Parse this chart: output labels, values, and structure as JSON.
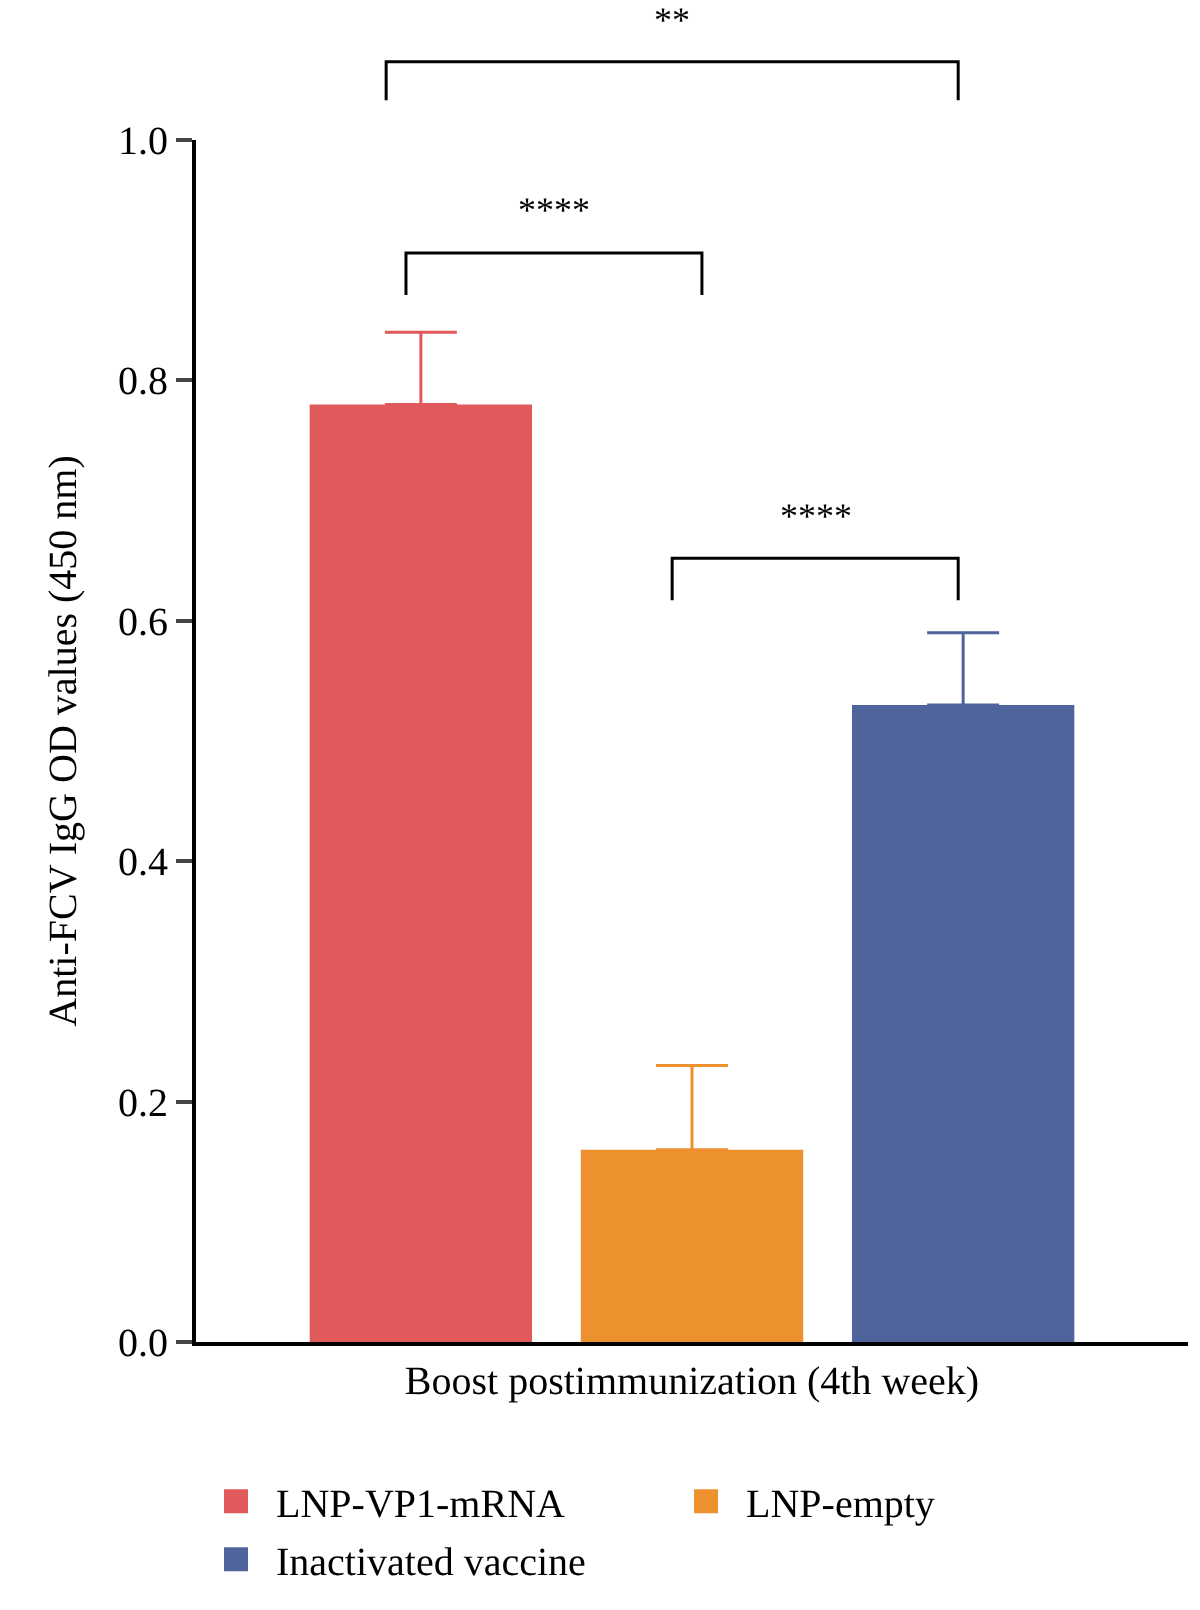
{
  "chart_data": {
    "type": "bar",
    "ylabel": "Anti-FCV IgG OD values (450 nm)",
    "categories": [
      "Boost postimmunization (4th week)"
    ],
    "series": [
      {
        "name": "LNP-VP1-mRNA",
        "color": "#e05a5c",
        "values": [
          0.78
        ],
        "errors": [
          [
            0.78,
            0.84
          ]
        ]
      },
      {
        "name": "LNP-empty",
        "color": "#ed912e",
        "values": [
          0.16
        ],
        "errors": [
          [
            0.16,
            0.23
          ]
        ]
      },
      {
        "name": "Inactivated vaccine",
        "color": "#4f649c",
        "values": [
          0.53
        ],
        "errors": [
          [
            0.53,
            0.59
          ]
        ]
      }
    ],
    "ylim": [
      0,
      1
    ],
    "yticks": [
      {
        "value": 0,
        "label": "0.0"
      },
      {
        "value": 0.2,
        "label": "0.2"
      },
      {
        "value": 0.4,
        "label": "0.4"
      },
      {
        "value": 0.6,
        "label": "0.6"
      },
      {
        "value": 0.8,
        "label": "0.8"
      },
      {
        "value": 1,
        "label": "1.0"
      }
    ],
    "annotations": [
      "****",
      "****",
      "**"
    ],
    "legend": "bottom"
  }
}
